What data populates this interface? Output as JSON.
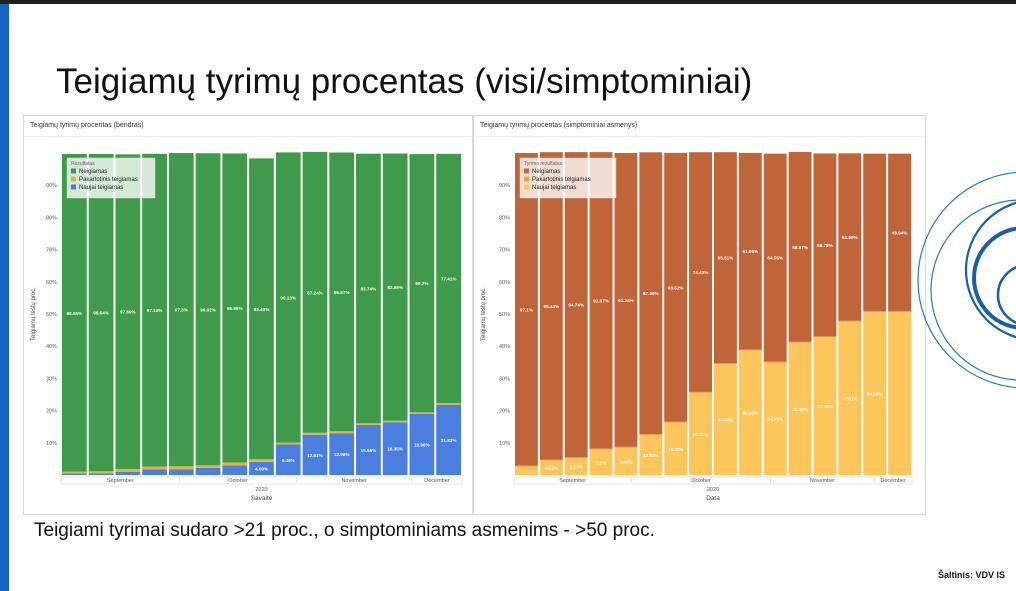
{
  "slide": {
    "title": "Teigiamų tyrimų procentas (visi/simptominiai)",
    "subtitle": "Teigiami tyrimai sudaro >21 proc., o simptominiams asmenims - >50 proc.",
    "source": "Šaltinis: VDV IS"
  },
  "chart_data": [
    {
      "type": "bar",
      "stacked": "100%",
      "title": "Teigiamų tyrimų procentas (bendras)",
      "xlabel": "Savaitė",
      "ylabel": "Teigiamų testų proc.",
      "ylim": [
        0,
        100
      ],
      "yticks": [
        "10%",
        "20%",
        "30%",
        "40%",
        "50%",
        "60%",
        "70%",
        "80%",
        "90%"
      ],
      "month_labels": [
        "September",
        "October",
        "November",
        "December"
      ],
      "year_label": "2020",
      "legend_title": "Rezultatas",
      "legend_position": "top-left",
      "x": [
        1,
        2,
        3,
        4,
        5,
        6,
        7,
        8,
        9,
        10,
        11,
        12,
        13,
        14,
        15
      ],
      "series": [
        {
          "name": "Naujai teigiamas",
          "color": "#4a7fe0",
          "values": [
            0.5,
            0.5,
            1.0,
            1.7,
            1.8,
            2.2,
            3.0,
            4.09,
            9.46,
            12.51,
            12.98,
            15.55,
            16.35,
            18.96,
            21.83
          ],
          "labels": [
            "",
            "",
            "",
            "",
            "",
            "",
            "",
            "4.09%",
            "9.46%",
            "12.51%",
            "12.98%",
            "15.55%",
            "16.35%",
            "18.96%",
            "21.83%"
          ]
        },
        {
          "name": "Pakartotinis teigiamas",
          "color": "#e8b23a",
          "values": [
            0.55,
            0.66,
            0.88,
            0.9,
            0.9,
            0.8,
            0.9,
            0.8,
            0.6,
            0.6,
            0.6,
            0.5,
            0.5,
            0.5,
            0.5
          ],
          "labels": []
        },
        {
          "name": "Neigiamas",
          "color": "#3f9a4b",
          "values": [
            98.65,
            98.54,
            97.69,
            97.14,
            97.3,
            96.92,
            95.95,
            93.43,
            90.13,
            87.24,
            86.57,
            83.74,
            82.99,
            80.2,
            77.41
          ],
          "labels": [
            "98.65%",
            "98.54%",
            "97.69%",
            "97.14%",
            "97.3%",
            "96.92%",
            "95.95%",
            "93.43%",
            "90.13%",
            "87.24%",
            "86.57%",
            "83.74%",
            "82.99%",
            "80.2%",
            "77.41%"
          ]
        }
      ]
    },
    {
      "type": "bar",
      "stacked": "100%",
      "title": "Teigiamų tyrimų procentas (simptominiai asmenys)",
      "xlabel": "Data",
      "ylabel": "Teigiamų testų proc.",
      "ylim": [
        0,
        100
      ],
      "yticks": [
        "10%",
        "20%",
        "30%",
        "40%",
        "50%",
        "60%",
        "70%",
        "80%",
        "90%"
      ],
      "month_labels": [
        "September",
        "October",
        "November",
        "December"
      ],
      "year_label": "2020",
      "legend_title": "Tyrimo rezultatas",
      "legend_position": "top-left",
      "x": [
        1,
        2,
        3,
        4,
        5,
        6,
        7,
        8,
        9,
        10,
        11,
        12,
        13,
        14,
        15,
        16
      ],
      "series": [
        {
          "name": "Naujai teigiamas",
          "color": "#fcc65a",
          "values": [
            2.6,
            4.51,
            5.22,
            7.9,
            8.46,
            12.43,
            16.23,
            25.51,
            34.44,
            38.68,
            34.95,
            41.06,
            42.78,
            47.61,
            50.56,
            50.56
          ],
          "labels": [
            "",
            "4.51%",
            "5.22%",
            "7.9%",
            "8.46%",
            "12.43%",
            "16.23%",
            "25.51%",
            "34.44%",
            "38.68%",
            "34.95%",
            "41.06%",
            "42.78%",
            "47.61%",
            "50.56%",
            ""
          ]
        },
        {
          "name": "Pakartotinis teigiamas",
          "color": "#ee9d4a",
          "values": [
            0.3,
            0.3,
            0.3,
            0.3,
            0.3,
            0.3,
            0.3,
            0.3,
            0.3,
            0.3,
            0.3,
            0.3,
            0.3,
            0.3,
            0.3,
            0.3
          ],
          "labels": []
        },
        {
          "name": "Neigiamas",
          "color": "#c0643a",
          "values": [
            97.1,
            95.44,
            94.74,
            92.07,
            91.24,
            87.49,
            83.52,
            74.43,
            65.51,
            61.05,
            64.55,
            58.97,
            56.78,
            51.99,
            48.94,
            48.94
          ],
          "labels": [
            "97.1%",
            "95.44%",
            "94.74%",
            "92.07%",
            "91.24%",
            "87.49%",
            "83.52%",
            "74.43%",
            "65.51%",
            "61.05%",
            "64.55%",
            "58.97%",
            "56.78%",
            "51.99%",
            "",
            "48.94%"
          ]
        }
      ]
    }
  ]
}
